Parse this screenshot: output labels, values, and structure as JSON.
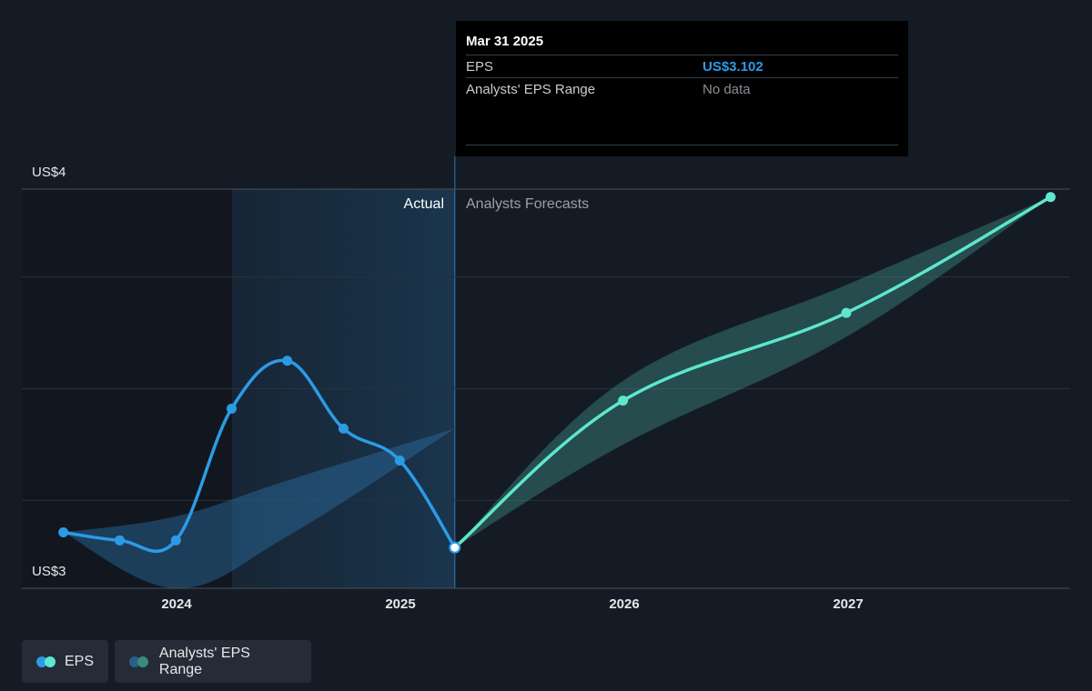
{
  "tooltip": {
    "date": "Mar 31 2025",
    "rows": [
      {
        "label": "EPS",
        "value": "US$3.102"
      },
      {
        "label": "Analysts' EPS Range",
        "value": "No data"
      }
    ]
  },
  "regions": {
    "actual_label": "Actual",
    "forecast_label": "Analysts Forecasts"
  },
  "legend": {
    "eps_label": "EPS",
    "range_label": "Analysts' EPS Range"
  },
  "colors": {
    "background": "#151b24",
    "actual_eps": "#2c9be6",
    "forecast_eps": "#5ee6cf",
    "range_fill": "#3b8a80"
  },
  "chart_data": {
    "type": "line",
    "title": "",
    "y_tick_labels": [
      "US$4",
      "US$3"
    ],
    "ylim": [
      3.0,
      4.0
    ],
    "x_tick_labels": [
      "2024",
      "2025",
      "2026",
      "2027"
    ],
    "grid": true,
    "legend_position": "bottom-left",
    "highlight": {
      "date": "2025-03-31",
      "value": 3.102
    },
    "series": [
      {
        "name": "EPS",
        "segment": "actual",
        "points": [
          {
            "date": "2023-06-30",
            "value": 3.14
          },
          {
            "date": "2023-09-30",
            "value": 3.12
          },
          {
            "date": "2023-12-31",
            "value": 3.12
          },
          {
            "date": "2024-03-31",
            "value": 3.45
          },
          {
            "date": "2024-06-30",
            "value": 3.57
          },
          {
            "date": "2024-09-30",
            "value": 3.4
          },
          {
            "date": "2024-12-31",
            "value": 3.32
          },
          {
            "date": "2025-03-31",
            "value": 3.102
          }
        ]
      },
      {
        "name": "EPS",
        "segment": "forecast",
        "points": [
          {
            "date": "2025-03-31",
            "value": 3.102
          },
          {
            "date": "2025-12-31",
            "value": 3.47
          },
          {
            "date": "2026-12-31",
            "value": 3.69
          },
          {
            "date": "2027-11-30",
            "value": 3.98
          }
        ]
      },
      {
        "name": "Analysts' EPS Range",
        "segment": "actual",
        "upper": [
          {
            "date": "2023-06-30",
            "value": 3.14
          },
          {
            "date": "2023-12-31",
            "value": 3.18
          },
          {
            "date": "2024-06-30",
            "value": 3.27
          },
          {
            "date": "2025-03-31",
            "value": 3.4
          }
        ],
        "lower": [
          {
            "date": "2023-06-30",
            "value": 3.14
          },
          {
            "date": "2023-12-31",
            "value": 3.0
          },
          {
            "date": "2024-06-30",
            "value": 3.13
          },
          {
            "date": "2025-03-31",
            "value": 3.4
          }
        ]
      },
      {
        "name": "Analysts' EPS Range",
        "segment": "forecast",
        "upper": [
          {
            "date": "2025-03-31",
            "value": 3.102
          },
          {
            "date": "2025-12-31",
            "value": 3.52
          },
          {
            "date": "2026-12-31",
            "value": 3.76
          },
          {
            "date": "2027-11-30",
            "value": 3.98
          }
        ],
        "lower": [
          {
            "date": "2025-03-31",
            "value": 3.102
          },
          {
            "date": "2025-12-31",
            "value": 3.36
          },
          {
            "date": "2026-12-31",
            "value": 3.63
          },
          {
            "date": "2027-11-30",
            "value": 3.98
          }
        ]
      }
    ]
  }
}
